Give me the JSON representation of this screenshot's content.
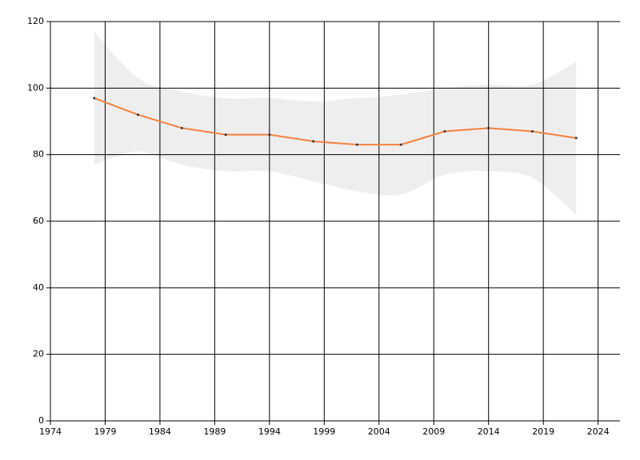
{
  "chart_data": {
    "type": "line",
    "x": [
      1978,
      1982,
      1986,
      1990,
      1994,
      1998,
      2002,
      2006,
      2010,
      2014,
      2018,
      2022
    ],
    "series": [
      {
        "color": "#f5803e",
        "band_color": "#eeeeee",
        "marker_color": "#333333",
        "values": [
          97,
          92,
          88,
          86,
          86,
          84,
          83,
          83,
          87,
          88,
          87,
          85
        ],
        "upper": [
          117,
          103,
          99,
          97,
          97,
          96,
          97,
          98,
          100,
          101,
          101,
          108
        ],
        "lower": [
          77,
          81,
          77,
          75,
          75,
          72,
          69,
          68,
          74,
          75,
          73,
          62
        ]
      }
    ],
    "xlim": [
      1974,
      2026
    ],
    "xticks": [
      1974,
      1979,
      1984,
      1989,
      1994,
      1999,
      2004,
      2009,
      2014,
      2019,
      2024
    ],
    "ylim": [
      0,
      120
    ],
    "yticks": [
      0,
      20,
      40,
      60,
      80,
      100,
      120
    ],
    "grid": true
  }
}
